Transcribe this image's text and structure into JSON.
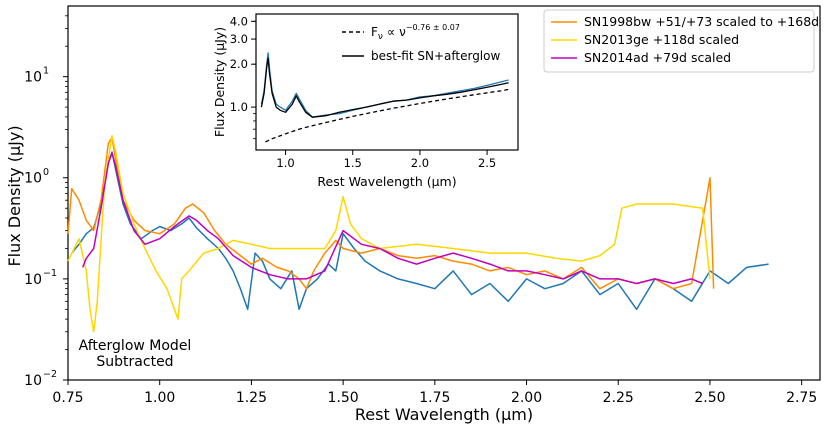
{
  "chart_data": [
    {
      "type": "line",
      "xlabel": "Rest Wavelength (μm)",
      "ylabel": "Flux Density (μJy)",
      "xlim": [
        0.75,
        2.8
      ],
      "ylim": [
        0.01,
        50
      ],
      "yscale": "log",
      "xticks": [
        {
          "v": 0.75,
          "label": "0.75"
        },
        {
          "v": 1.0,
          "label": "1.00"
        },
        {
          "v": 1.25,
          "label": "1.25"
        },
        {
          "v": 1.5,
          "label": "1.50"
        },
        {
          "v": 1.75,
          "label": "1.75"
        },
        {
          "v": 2.0,
          "label": "2.00"
        },
        {
          "v": 2.25,
          "label": "2.25"
        },
        {
          "v": 2.5,
          "label": "2.50"
        },
        {
          "v": 2.75,
          "label": "2.75"
        }
      ],
      "yticks": [
        {
          "v": 0.01,
          "label": "10",
          "exp": "−2"
        },
        {
          "v": 0.1,
          "label": "10",
          "exp": "−1"
        },
        {
          "v": 1,
          "label": "10",
          "exp": "0"
        },
        {
          "v": 10,
          "label": "10",
          "exp": "1"
        }
      ],
      "legend_position": "top-right",
      "annotation": [
        "Afterglow Model",
        "Subtracted"
      ],
      "series": [
        {
          "name": "",
          "color": "#1f77b4",
          "x": [
            0.76,
            0.78,
            0.8,
            0.82,
            0.84,
            0.86,
            0.87,
            0.88,
            0.9,
            0.92,
            0.95,
            0.98,
            1.0,
            1.03,
            1.06,
            1.08,
            1.1,
            1.13,
            1.16,
            1.18,
            1.2,
            1.22,
            1.24,
            1.26,
            1.28,
            1.3,
            1.33,
            1.36,
            1.38,
            1.4,
            1.43,
            1.46,
            1.48,
            1.5,
            1.53,
            1.56,
            1.6,
            1.65,
            1.7,
            1.75,
            1.8,
            1.85,
            1.9,
            1.95,
            2.0,
            2.05,
            2.1,
            2.15,
            2.2,
            2.25,
            2.3,
            2.35,
            2.4,
            2.45,
            2.5,
            2.55,
            2.6,
            2.66
          ],
          "y": [
            0.18,
            0.22,
            0.28,
            0.32,
            0.55,
            1.4,
            1.8,
            1.2,
            0.55,
            0.35,
            0.25,
            0.3,
            0.33,
            0.3,
            0.35,
            0.4,
            0.32,
            0.25,
            0.2,
            0.16,
            0.12,
            0.08,
            0.05,
            0.18,
            0.15,
            0.1,
            0.08,
            0.12,
            0.05,
            0.08,
            0.1,
            0.14,
            0.12,
            0.28,
            0.2,
            0.15,
            0.12,
            0.1,
            0.09,
            0.08,
            0.12,
            0.07,
            0.09,
            0.06,
            0.1,
            0.08,
            0.09,
            0.12,
            0.07,
            0.09,
            0.05,
            0.1,
            0.08,
            0.06,
            0.12,
            0.09,
            0.13,
            0.14
          ]
        },
        {
          "name": "SN1998bw +51/+73 scaled to +168d",
          "color": "#ff8c00",
          "x": [
            0.75,
            0.76,
            0.78,
            0.8,
            0.82,
            0.84,
            0.86,
            0.87,
            0.88,
            0.9,
            0.93,
            0.96,
            1.0,
            1.04,
            1.07,
            1.09,
            1.12,
            1.15,
            1.18,
            1.22,
            1.25,
            1.28,
            1.32,
            1.35,
            1.38,
            1.4,
            1.42,
            1.45,
            1.48,
            1.5,
            1.55,
            1.6,
            1.65,
            1.7,
            1.75,
            1.8,
            1.85,
            1.9,
            1.95,
            2.0,
            2.05,
            2.1,
            2.15,
            2.2,
            2.25,
            2.3,
            2.35,
            2.4,
            2.45,
            2.5,
            2.51
          ],
          "y": [
            0.28,
            0.78,
            0.6,
            0.38,
            0.3,
            0.6,
            2.2,
            2.5,
            1.5,
            0.6,
            0.38,
            0.3,
            0.28,
            0.35,
            0.5,
            0.55,
            0.45,
            0.3,
            0.22,
            0.17,
            0.14,
            0.16,
            0.13,
            0.12,
            0.1,
            0.08,
            0.12,
            0.18,
            0.24,
            0.2,
            0.18,
            0.2,
            0.17,
            0.16,
            0.17,
            0.15,
            0.14,
            0.12,
            0.13,
            0.11,
            0.12,
            0.1,
            0.13,
            0.08,
            0.1,
            0.09,
            0.1,
            0.08,
            0.09,
            1.0,
            0.08
          ]
        },
        {
          "name": "SN2013ge +118d scaled",
          "color": "#ffd700",
          "x": [
            0.75,
            0.78,
            0.8,
            0.81,
            0.82,
            0.83,
            0.85,
            0.87,
            0.88,
            0.9,
            0.93,
            0.96,
            0.99,
            1.02,
            1.04,
            1.05,
            1.06,
            1.08,
            1.12,
            1.16,
            1.2,
            1.25,
            1.3,
            1.35,
            1.4,
            1.45,
            1.48,
            1.5,
            1.52,
            1.55,
            1.6,
            1.7,
            1.8,
            1.9,
            2.0,
            2.08,
            2.15,
            2.2,
            2.24,
            2.26,
            2.3,
            2.4,
            2.48,
            2.5
          ],
          "y": [
            0.15,
            0.25,
            0.12,
            0.05,
            0.03,
            0.06,
            0.9,
            2.6,
            1.8,
            0.7,
            0.35,
            0.2,
            0.12,
            0.08,
            0.05,
            0.04,
            0.1,
            0.12,
            0.18,
            0.2,
            0.24,
            0.22,
            0.2,
            0.2,
            0.2,
            0.2,
            0.3,
            0.65,
            0.35,
            0.25,
            0.2,
            0.22,
            0.2,
            0.18,
            0.18,
            0.16,
            0.15,
            0.17,
            0.22,
            0.5,
            0.55,
            0.55,
            0.5,
            0.1
          ]
        },
        {
          "name": "SN2014ad +79d scaled",
          "color": "#c000c0",
          "x": [
            0.79,
            0.8,
            0.82,
            0.84,
            0.86,
            0.87,
            0.88,
            0.9,
            0.93,
            0.96,
            1.0,
            1.04,
            1.08,
            1.1,
            1.13,
            1.16,
            1.2,
            1.25,
            1.3,
            1.35,
            1.4,
            1.45,
            1.5,
            1.55,
            1.6,
            1.65,
            1.7,
            1.75,
            1.8,
            1.85,
            1.9,
            1.95,
            2.0,
            2.05,
            2.1,
            2.15,
            2.2,
            2.25,
            2.3,
            2.35,
            2.4,
            2.45,
            2.48
          ],
          "y": [
            0.13,
            0.16,
            0.2,
            0.5,
            1.4,
            1.75,
            1.3,
            0.6,
            0.3,
            0.22,
            0.25,
            0.33,
            0.42,
            0.38,
            0.3,
            0.25,
            0.17,
            0.13,
            0.11,
            0.1,
            0.1,
            0.12,
            0.3,
            0.22,
            0.2,
            0.16,
            0.14,
            0.16,
            0.18,
            0.16,
            0.14,
            0.12,
            0.12,
            0.11,
            0.1,
            0.12,
            0.1,
            0.1,
            0.09,
            0.1,
            0.09,
            0.1,
            0.09
          ]
        }
      ]
    },
    {
      "type": "line",
      "xlabel": "Rest Wavelength (μm)",
      "ylabel": "Flux Density (μJy)",
      "xlim": [
        0.78,
        2.73
      ],
      "ylim": [
        0.5,
        4.5
      ],
      "yscale": "log",
      "xticks": [
        {
          "v": 1.0,
          "label": "1.0"
        },
        {
          "v": 1.5,
          "label": "1.5"
        },
        {
          "v": 2.0,
          "label": "2.0"
        },
        {
          "v": 2.5,
          "label": "2.5"
        }
      ],
      "yticks": [
        {
          "v": 1.0,
          "label": "1.0"
        },
        {
          "v": 2.0,
          "label": "2.0"
        },
        {
          "v": 3.0,
          "label": "3.0"
        },
        {
          "v": 4.0,
          "label": "4.0"
        }
      ],
      "legend_position": "top-right",
      "series": [
        {
          "name": "",
          "color": "#1f77b4",
          "x": [
            0.82,
            0.84,
            0.86,
            0.87,
            0.88,
            0.9,
            0.93,
            0.96,
            1.0,
            1.05,
            1.08,
            1.1,
            1.15,
            1.2,
            1.3,
            1.4,
            1.5,
            1.6,
            1.7,
            1.8,
            1.9,
            2.0,
            2.1,
            2.2,
            2.3,
            2.4,
            2.5,
            2.6,
            2.66
          ],
          "y": [
            1.05,
            1.3,
            2.0,
            2.4,
            1.9,
            1.3,
            1.05,
            1.0,
            0.95,
            1.1,
            1.25,
            1.15,
            0.95,
            0.85,
            0.88,
            0.9,
            0.95,
            1.0,
            1.05,
            1.1,
            1.12,
            1.18,
            1.2,
            1.25,
            1.3,
            1.35,
            1.42,
            1.5,
            1.55
          ]
        },
        {
          "name": "best-fit SN+afterglow",
          "color": "#000000",
          "x": [
            0.82,
            0.84,
            0.86,
            0.87,
            0.88,
            0.9,
            0.93,
            0.96,
            1.0,
            1.05,
            1.08,
            1.1,
            1.15,
            1.2,
            1.3,
            1.4,
            1.5,
            1.6,
            1.7,
            1.8,
            1.9,
            2.0,
            2.1,
            2.2,
            2.3,
            2.4,
            2.5,
            2.6,
            2.66
          ],
          "y": [
            1.0,
            1.25,
            1.9,
            2.2,
            1.75,
            1.25,
            1.0,
            0.95,
            0.92,
            1.05,
            1.2,
            1.1,
            0.92,
            0.85,
            0.87,
            0.92,
            0.96,
            1.0,
            1.05,
            1.1,
            1.12,
            1.16,
            1.2,
            1.23,
            1.27,
            1.32,
            1.38,
            1.44,
            1.48
          ]
        },
        {
          "name": "F_ν ∝ ν^(−0.76 ± 0.07)",
          "color": "#000000",
          "dashed": true,
          "x": [
            0.85,
            0.9,
            1.0,
            1.1,
            1.2,
            1.3,
            1.4,
            1.5,
            1.6,
            1.7,
            1.8,
            1.9,
            2.0,
            2.1,
            2.2,
            2.3,
            2.4,
            2.5,
            2.6,
            2.66
          ],
          "y": [
            0.57,
            0.6,
            0.65,
            0.7,
            0.74,
            0.78,
            0.82,
            0.86,
            0.9,
            0.94,
            0.98,
            1.02,
            1.06,
            1.1,
            1.14,
            1.18,
            1.22,
            1.26,
            1.3,
            1.33
          ]
        }
      ]
    }
  ]
}
